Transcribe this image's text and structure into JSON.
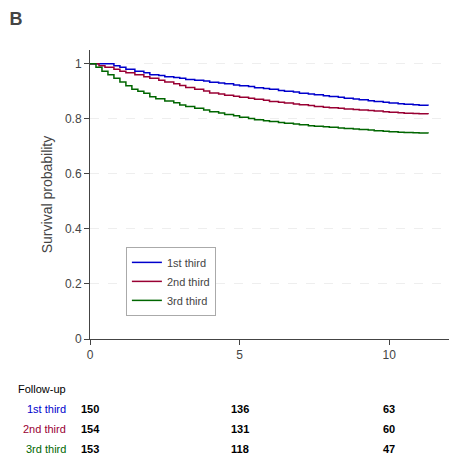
{
  "chart_data": {
    "type": "step",
    "title": "B",
    "y_label": "Survival probability",
    "xlim": [
      0,
      12
    ],
    "xticks": [
      0,
      5,
      10
    ],
    "ylim": [
      0.0,
      1.05
    ],
    "yticks": [
      0.0,
      0.2,
      0.4,
      0.6,
      0.8,
      1.0
    ],
    "grid": "y",
    "legend": "lower left",
    "series": [
      {
        "name": "1st third",
        "color": "#0000cc",
        "x": [
          0,
          0.5,
          0.8,
          1.0,
          1.2,
          1.5,
          1.8,
          2.0,
          2.3,
          2.5,
          2.8,
          3.0,
          3.2,
          3.5,
          3.8,
          4.0,
          4.3,
          4.5,
          4.8,
          5.0,
          5.3,
          5.5,
          5.8,
          6.0,
          6.3,
          6.5,
          6.8,
          7.0,
          7.3,
          7.5,
          7.8,
          8.0,
          8.3,
          8.5,
          8.8,
          9.0,
          9.3,
          9.5,
          9.8,
          10.0,
          10.3,
          10.5,
          10.8,
          11.0,
          11.3
        ],
        "values": [
          1.0,
          1.0,
          0.993,
          0.987,
          0.98,
          0.973,
          0.967,
          0.96,
          0.957,
          0.953,
          0.95,
          0.947,
          0.943,
          0.94,
          0.937,
          0.933,
          0.93,
          0.927,
          0.923,
          0.92,
          0.917,
          0.913,
          0.91,
          0.907,
          0.903,
          0.9,
          0.897,
          0.893,
          0.89,
          0.887,
          0.884,
          0.881,
          0.878,
          0.875,
          0.872,
          0.869,
          0.866,
          0.863,
          0.86,
          0.857,
          0.855,
          0.853,
          0.851,
          0.849,
          0.847
        ]
      },
      {
        "name": "2nd third",
        "color": "#990033",
        "x": [
          0,
          0.3,
          0.5,
          0.8,
          1.0,
          1.2,
          1.5,
          1.8,
          2.0,
          2.3,
          2.5,
          2.8,
          3.0,
          3.2,
          3.5,
          3.8,
          4.0,
          4.3,
          4.5,
          4.8,
          5.0,
          5.3,
          5.5,
          5.8,
          6.0,
          6.3,
          6.5,
          6.8,
          7.0,
          7.3,
          7.5,
          7.8,
          8.0,
          8.3,
          8.5,
          8.8,
          9.0,
          9.3,
          9.5,
          9.8,
          10.0,
          10.3,
          10.5,
          10.8,
          11.0,
          11.3
        ],
        "values": [
          1.0,
          0.993,
          0.987,
          0.98,
          0.973,
          0.967,
          0.96,
          0.953,
          0.947,
          0.94,
          0.934,
          0.927,
          0.921,
          0.914,
          0.907,
          0.901,
          0.894,
          0.89,
          0.886,
          0.882,
          0.878,
          0.875,
          0.871,
          0.867,
          0.863,
          0.86,
          0.857,
          0.854,
          0.851,
          0.848,
          0.845,
          0.842,
          0.84,
          0.838,
          0.836,
          0.834,
          0.832,
          0.83,
          0.828,
          0.826,
          0.824,
          0.822,
          0.82,
          0.819,
          0.818,
          0.817
        ]
      },
      {
        "name": "3rd third",
        "color": "#006600",
        "x": [
          0,
          0.2,
          0.4,
          0.6,
          0.8,
          1.0,
          1.2,
          1.4,
          1.6,
          1.8,
          2.0,
          2.2,
          2.5,
          2.8,
          3.0,
          3.2,
          3.5,
          3.8,
          4.0,
          4.3,
          4.5,
          4.8,
          5.0,
          5.3,
          5.5,
          5.8,
          6.0,
          6.3,
          6.5,
          6.8,
          7.0,
          7.3,
          7.5,
          7.8,
          8.0,
          8.3,
          8.5,
          8.8,
          9.0,
          9.3,
          9.5,
          9.8,
          10.0,
          10.3,
          10.5,
          10.8,
          11.0,
          11.3
        ],
        "values": [
          1.0,
          0.987,
          0.973,
          0.96,
          0.947,
          0.934,
          0.92,
          0.907,
          0.9,
          0.893,
          0.88,
          0.873,
          0.865,
          0.858,
          0.85,
          0.845,
          0.838,
          0.832,
          0.826,
          0.821,
          0.816,
          0.811,
          0.806,
          0.801,
          0.797,
          0.793,
          0.79,
          0.787,
          0.784,
          0.781,
          0.778,
          0.775,
          0.773,
          0.771,
          0.769,
          0.767,
          0.765,
          0.763,
          0.761,
          0.759,
          0.757,
          0.755,
          0.753,
          0.751,
          0.75,
          0.749,
          0.748,
          0.747
        ]
      }
    ],
    "at_risk": {
      "title": "Follow-up",
      "times": [
        0,
        5,
        10
      ],
      "rows": [
        {
          "name": "1st third",
          "color": "#0000cc",
          "values": [
            150,
            136,
            63
          ]
        },
        {
          "name": "2nd third",
          "color": "#990033",
          "values": [
            154,
            131,
            60
          ]
        },
        {
          "name": "3rd third",
          "color": "#006600",
          "values": [
            153,
            118,
            47
          ]
        }
      ]
    }
  }
}
